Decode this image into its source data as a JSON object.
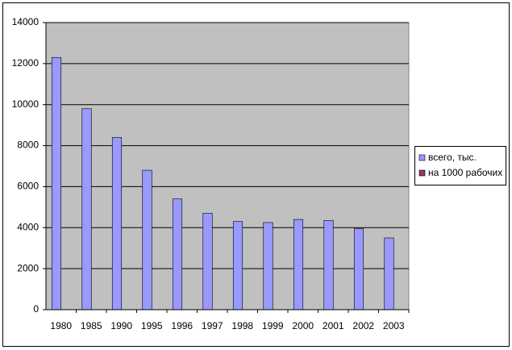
{
  "chart_data": {
    "type": "bar",
    "categories": [
      "1980",
      "1985",
      "1990",
      "1995",
      "1996",
      "1997",
      "1998",
      "1999",
      "2000",
      "2001",
      "2002",
      "2003"
    ],
    "series": [
      {
        "name": "всего, тыс.",
        "color": "#9999ff",
        "values": [
          12300,
          9800,
          8400,
          6800,
          5400,
          4700,
          4300,
          4250,
          4400,
          4350,
          3950,
          3500
        ]
      },
      {
        "name": "на 1000 рабочих",
        "color": "#993366",
        "values": [
          0,
          0,
          0,
          0,
          0,
          0,
          0,
          0,
          0,
          0,
          0,
          0
        ]
      }
    ],
    "ylim": [
      0,
      14000
    ],
    "yticks": [
      0,
      2000,
      4000,
      6000,
      8000,
      10000,
      12000,
      14000
    ],
    "grid": true,
    "legend": "right"
  }
}
